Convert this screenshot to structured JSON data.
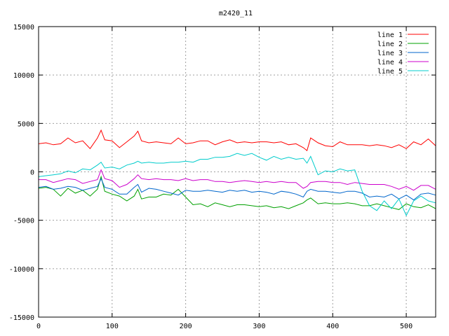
{
  "chart_data": {
    "type": "line",
    "title": "m2420_11",
    "xlabel": "",
    "ylabel": "",
    "xlim": [
      0,
      540
    ],
    "ylim": [
      -15000,
      15000
    ],
    "x_ticks": [
      0,
      100,
      200,
      300,
      400,
      500
    ],
    "y_ticks": [
      -15000,
      -10000,
      -5000,
      0,
      5000,
      10000,
      15000
    ],
    "x_tick_labels": [
      "0",
      "100",
      "200",
      "300",
      "400",
      "500"
    ],
    "y_tick_labels": [
      "-15000",
      "-10000",
      "-5000",
      "0",
      "5000",
      "10000",
      "15000"
    ],
    "grid": true,
    "legend_position": "top-right",
    "x": [
      0,
      10,
      20,
      30,
      40,
      50,
      60,
      70,
      80,
      85,
      90,
      100,
      110,
      120,
      130,
      135,
      140,
      150,
      160,
      170,
      180,
      190,
      200,
      210,
      220,
      230,
      240,
      250,
      260,
      270,
      280,
      290,
      300,
      310,
      320,
      330,
      340,
      350,
      360,
      365,
      370,
      380,
      390,
      400,
      410,
      420,
      430,
      440,
      450,
      460,
      470,
      480,
      490,
      500,
      510,
      520,
      530,
      540
    ],
    "series": [
      {
        "name": "line 1",
        "color": "#ff0000",
        "values": [
          2900,
          3000,
          2800,
          2900,
          3500,
          3000,
          3200,
          2400,
          3500,
          4300,
          3300,
          3200,
          2500,
          3100,
          3700,
          4200,
          3200,
          3000,
          3100,
          3000,
          2900,
          3500,
          2900,
          3000,
          3200,
          3200,
          2800,
          3100,
          3300,
          3000,
          3100,
          3000,
          3100,
          3100,
          3000,
          3100,
          2800,
          2900,
          2500,
          2200,
          3500,
          3000,
          2700,
          2600,
          3100,
          2800,
          2800,
          2800,
          2700,
          2800,
          2700,
          2500,
          2800,
          2400,
          3100,
          2800,
          3400,
          2700
        ]
      },
      {
        "name": "line 2",
        "color": "#00a000",
        "values": [
          -1700,
          -1600,
          -1800,
          -2500,
          -1700,
          -2200,
          -1900,
          -2500,
          -1800,
          -500,
          -2000,
          -2300,
          -2500,
          -3000,
          -2500,
          -1800,
          -2800,
          -2600,
          -2600,
          -2300,
          -2400,
          -1800,
          -2600,
          -3400,
          -3300,
          -3600,
          -3200,
          -3400,
          -3600,
          -3400,
          -3400,
          -3500,
          -3600,
          -3500,
          -3700,
          -3600,
          -3800,
          -3500,
          -3200,
          -2900,
          -2700,
          -3300,
          -3200,
          -3300,
          -3300,
          -3200,
          -3300,
          -3500,
          -3500,
          -3300,
          -3500,
          -3700,
          -3900,
          -3300,
          -3600,
          -3700,
          -3400,
          -3800
        ]
      },
      {
        "name": "line 3",
        "color": "#0066cc",
        "values": [
          -1600,
          -1500,
          -1800,
          -1700,
          -1500,
          -1600,
          -1900,
          -1700,
          -1500,
          -700,
          -1600,
          -1800,
          -2300,
          -2300,
          -1600,
          -1300,
          -2100,
          -1700,
          -1800,
          -2000,
          -2200,
          -2400,
          -1900,
          -2000,
          -2000,
          -1900,
          -2000,
          -2100,
          -1900,
          -2000,
          -1900,
          -2100,
          -2000,
          -2100,
          -2300,
          -2000,
          -2100,
          -2300,
          -2600,
          -2000,
          -1800,
          -2000,
          -2000,
          -2100,
          -2200,
          -2000,
          -2000,
          -2200,
          -2600,
          -2500,
          -2600,
          -2300,
          -2800,
          -2400,
          -2900,
          -2300,
          -2200,
          -2400
        ]
      },
      {
        "name": "line 4",
        "color": "#cc00cc",
        "values": [
          -800,
          -800,
          -1100,
          -900,
          -700,
          -800,
          -1200,
          -1000,
          -800,
          200,
          -700,
          -900,
          -1600,
          -1300,
          -700,
          -300,
          -700,
          -800,
          -700,
          -800,
          -800,
          -900,
          -700,
          -900,
          -800,
          -800,
          -1000,
          -1000,
          -1100,
          -1000,
          -900,
          -1000,
          -1100,
          -1000,
          -1100,
          -1000,
          -1100,
          -1100,
          -1700,
          -1500,
          -1100,
          -1000,
          -1000,
          -1100,
          -1100,
          -1300,
          -1100,
          -1200,
          -1300,
          -1300,
          -1300,
          -1500,
          -1800,
          -1500,
          -1900,
          -1400,
          -1400,
          -1800
        ]
      },
      {
        "name": "line 5",
        "color": "#00cccc",
        "values": [
          -500,
          -400,
          -300,
          -200,
          100,
          -100,
          300,
          200,
          700,
          1000,
          400,
          500,
          300,
          700,
          900,
          1100,
          900,
          1000,
          900,
          900,
          1000,
          1000,
          1100,
          1000,
          1300,
          1300,
          1500,
          1500,
          1600,
          1900,
          1700,
          1900,
          1500,
          1200,
          1600,
          1300,
          1500,
          1300,
          1400,
          900,
          1600,
          -300,
          100,
          0,
          300,
          100,
          200,
          -2000,
          -3500,
          -4000,
          -3000,
          -3800,
          -2800,
          -4500,
          -3000,
          -2500,
          -3000,
          -3200
        ]
      }
    ]
  }
}
